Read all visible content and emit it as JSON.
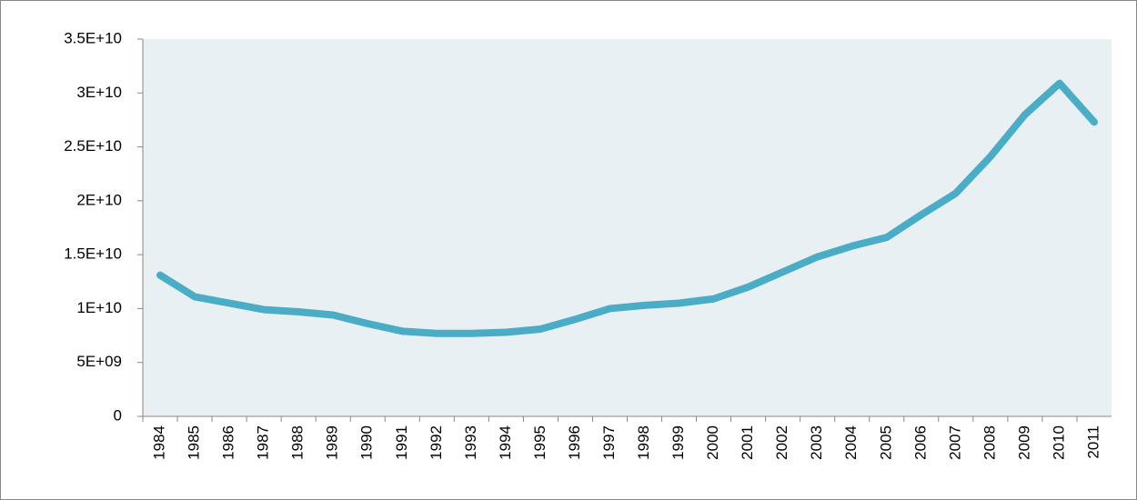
{
  "chart_data": {
    "type": "line",
    "categories": [
      "1984",
      "1985",
      "1986",
      "1987",
      "1988",
      "1989",
      "1990",
      "1991",
      "1992",
      "1993",
      "1994",
      "1995",
      "1996",
      "1997",
      "1998",
      "1999",
      "2000",
      "2001",
      "2002",
      "2003",
      "2004",
      "2005",
      "2006",
      "2007",
      "2008",
      "2009",
      "2010",
      "2011"
    ],
    "series": [
      {
        "color": "#4bacc6",
        "values": [
          13100000000,
          11100000000,
          10500000000,
          9900000000,
          9700000000,
          9400000000,
          8600000000,
          7900000000,
          7700000000,
          7700000000,
          7800000000,
          8100000000,
          9000000000,
          10000000000,
          10300000000,
          10500000000,
          10900000000,
          12000000000,
          13400000000,
          14800000000,
          15800000000,
          16600000000,
          18700000000,
          20700000000,
          24100000000,
          28000000000,
          30900000000,
          27300000000
        ]
      }
    ],
    "ylim": [
      0,
      35000000000
    ],
    "yticks": [
      0,
      {
        "value": 5000000000,
        "label": "5E+09"
      },
      {
        "value": 10000000000,
        "label": "1E+10"
      },
      {
        "value": 15000000000,
        "label": "1.5E+10"
      },
      {
        "value": 20000000000,
        "label": "2E+10"
      },
      {
        "value": 25000000000,
        "label": "2.5E+10"
      },
      {
        "value": 30000000000,
        "label": "3E+10"
      },
      {
        "value": 35000000000,
        "label": "3.5E+10"
      }
    ],
    "plot_background": "#e8f0f3"
  }
}
